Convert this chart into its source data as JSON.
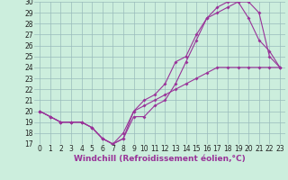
{
  "xlabel": "Windchill (Refroidissement éolien,°C)",
  "bg_color": "#cceedd",
  "line_color": "#993399",
  "grid_color": "#99bbbb",
  "hours": [
    0,
    1,
    2,
    3,
    4,
    5,
    6,
    7,
    8,
    9,
    10,
    11,
    12,
    13,
    14,
    15,
    16,
    17,
    18,
    19,
    20,
    21,
    22,
    23
  ],
  "line1": [
    20.0,
    19.5,
    19.0,
    19.0,
    19.0,
    18.5,
    17.5,
    17.0,
    17.5,
    19.5,
    19.5,
    20.5,
    21.0,
    22.5,
    24.5,
    26.5,
    28.5,
    29.0,
    29.5,
    30.0,
    30.0,
    29.0,
    25.0,
    24.0
  ],
  "line2": [
    20.0,
    19.5,
    19.0,
    19.0,
    19.0,
    18.5,
    17.5,
    17.0,
    17.5,
    20.0,
    21.0,
    21.5,
    22.5,
    24.5,
    25.0,
    27.0,
    28.5,
    29.5,
    30.0,
    30.0,
    28.5,
    26.5,
    25.5,
    24.0
  ],
  "line3": [
    20.0,
    19.5,
    19.0,
    19.0,
    19.0,
    18.5,
    17.5,
    17.0,
    18.0,
    20.0,
    20.5,
    21.0,
    21.5,
    22.0,
    22.5,
    23.0,
    23.5,
    24.0,
    24.0,
    24.0,
    24.0,
    24.0,
    24.0,
    24.0
  ],
  "ylim": [
    17,
    30
  ],
  "xlim_min": -0.5,
  "xlim_max": 23.5,
  "yticks": [
    17,
    18,
    19,
    20,
    21,
    22,
    23,
    24,
    25,
    26,
    27,
    28,
    29,
    30
  ],
  "xticks": [
    0,
    1,
    2,
    3,
    4,
    5,
    6,
    7,
    8,
    9,
    10,
    11,
    12,
    13,
    14,
    15,
    16,
    17,
    18,
    19,
    20,
    21,
    22,
    23
  ],
  "tick_fontsize": 5.5,
  "xlabel_fontsize": 6.5,
  "marker_size": 2.0,
  "line_width": 0.8
}
